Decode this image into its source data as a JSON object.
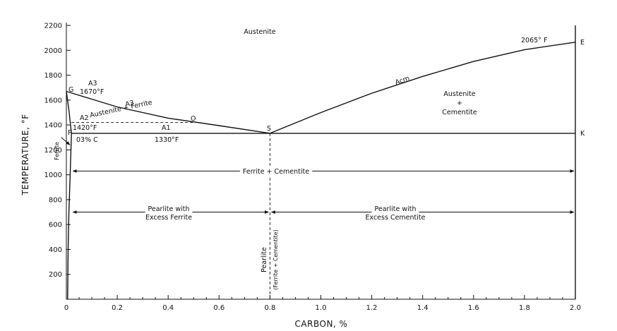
{
  "chart_data": {
    "type": "line",
    "title": "",
    "xlabel": "CARBON, %",
    "ylabel": "TEMPERATURE, °F",
    "xlim": [
      0,
      2.0
    ],
    "ylim": [
      0,
      2200
    ],
    "x_ticks": [
      {
        "value": 0,
        "label": "0"
      },
      {
        "value": 0.2,
        "label": "0.2"
      },
      {
        "value": 0.4,
        "label": "0.4"
      },
      {
        "value": 0.6,
        "label": "0.6"
      },
      {
        "value": 0.8,
        "label": "0.8"
      },
      {
        "value": 1.0,
        "label": "1.0"
      },
      {
        "value": 1.2,
        "label": "1.2"
      },
      {
        "value": 1.4,
        "label": "1.4"
      },
      {
        "value": 1.6,
        "label": "1.6"
      },
      {
        "value": 1.8,
        "label": "1.8"
      },
      {
        "value": 2.0,
        "label": "2.0"
      }
    ],
    "x_minor_step": 0.05,
    "y_ticks": [
      {
        "value": 200,
        "label": "200"
      },
      {
        "value": 400,
        "label": "400"
      },
      {
        "value": 600,
        "label": "600"
      },
      {
        "value": 800,
        "label": "800"
      },
      {
        "value": 1000,
        "label": "1000"
      },
      {
        "value": 1200,
        "label": "1200"
      },
      {
        "value": 1400,
        "label": "1400"
      },
      {
        "value": 1600,
        "label": "1600"
      },
      {
        "value": 1800,
        "label": "1800"
      },
      {
        "value": 2000,
        "label": "2000"
      },
      {
        "value": 2200,
        "label": "2200"
      }
    ],
    "series": [
      {
        "key": "a3-line",
        "name": "A3",
        "style": "solid",
        "points": [
          [
            0,
            1670
          ],
          [
            0.2,
            1545
          ],
          [
            0.4,
            1455
          ],
          [
            0.6,
            1395
          ],
          [
            0.8,
            1333
          ]
        ]
      },
      {
        "key": "acm-line",
        "name": "Acm",
        "style": "solid",
        "points": [
          [
            0.8,
            1333
          ],
          [
            1.0,
            1500
          ],
          [
            1.2,
            1655
          ],
          [
            1.4,
            1790
          ],
          [
            1.6,
            1910
          ],
          [
            1.8,
            2005
          ],
          [
            2.0,
            2065
          ]
        ]
      },
      {
        "key": "a1-line",
        "name": "A1",
        "style": "solid",
        "points": [
          [
            0.02,
            1333
          ],
          [
            2.0,
            1333
          ]
        ]
      },
      {
        "key": "a2-line",
        "name": "A2",
        "style": "dashed",
        "points": [
          [
            0.02,
            1420
          ],
          [
            0.5,
            1420
          ]
        ]
      },
      {
        "key": "solvus-line",
        "name": "",
        "style": "solid",
        "points": [
          [
            0,
            1670
          ],
          [
            0.01,
            1520
          ],
          [
            0.02,
            1333
          ]
        ]
      },
      {
        "key": "ferrite-boundary",
        "name": "",
        "style": "solid",
        "points": [
          [
            0.02,
            1333
          ],
          [
            0.015,
            1000
          ],
          [
            0.01,
            700
          ],
          [
            0.007,
            400
          ],
          [
            0.005,
            0
          ]
        ]
      },
      {
        "key": "right-boundary",
        "name": "",
        "style": "solid",
        "points": [
          [
            2.0,
            0
          ],
          [
            2.0,
            2200
          ]
        ]
      },
      {
        "key": "eutectoid-line",
        "name": "",
        "style": "dashed",
        "points": [
          [
            0.8,
            1333
          ],
          [
            0.8,
            0
          ]
        ]
      }
    ],
    "point_labels": [
      {
        "key": "point-g",
        "text": "G",
        "x": 0,
        "y": 1670
      },
      {
        "key": "point-p",
        "text": "P",
        "x": 0.02,
        "y": 1333
      },
      {
        "key": "point-s",
        "text": "S",
        "x": 0.8,
        "y": 1333
      },
      {
        "key": "point-k",
        "text": "K",
        "x": 2.0,
        "y": 1333
      },
      {
        "key": "point-e",
        "text": "E",
        "x": 2.0,
        "y": 2065
      },
      {
        "key": "point-o",
        "text": "O",
        "x": 0.5,
        "y": 1420
      }
    ],
    "annotations": [
      {
        "key": "austenite",
        "text": "Austenite"
      },
      {
        "key": "austenite-cementite-1",
        "text": "Austenite"
      },
      {
        "key": "austenite-cementite-2",
        "text": "+"
      },
      {
        "key": "austenite-cementite-3",
        "text": "Cementite"
      },
      {
        "key": "austenite-ferrite",
        "text": "Austenite + Ferrite"
      },
      {
        "key": "a3-upper",
        "text": "A3"
      },
      {
        "key": "temp-1670",
        "text": "1670°F"
      },
      {
        "key": "a3-mid",
        "text": "A3"
      },
      {
        "key": "a2-text",
        "text": "A2"
      },
      {
        "key": "temp-1420",
        "text": "1420°F"
      },
      {
        "key": "a1-text",
        "text": "A1"
      },
      {
        "key": "temp-1330",
        "text": "1330°F"
      },
      {
        "key": "carbon-003",
        "text": "03% C"
      },
      {
        "key": "ferrite-text",
        "text": "Ferrite"
      },
      {
        "key": "acm-text",
        "text": "Acm"
      },
      {
        "key": "temp-2065",
        "text": "2065° F"
      },
      {
        "key": "ferrite-cementite",
        "text": "Ferrite + Cementite"
      },
      {
        "key": "pearlite-left-1",
        "text": "Pearlite with"
      },
      {
        "key": "pearlite-left-2",
        "text": "Excess Ferrite"
      },
      {
        "key": "pearlite-right-1",
        "text": "Pearlite with"
      },
      {
        "key": "pearlite-right-2",
        "text": "Excess Cementite"
      },
      {
        "key": "pearlite-vertical-1",
        "text": "Pearlite"
      },
      {
        "key": "pearlite-vertical-2",
        "text": "(Ferrite + Cementite)"
      }
    ],
    "range_arrows": [
      {
        "key": "ferrite-cementite-arrow",
        "y": 1030,
        "x_from": 0.02,
        "x_to": 2.0
      },
      {
        "key": "pearlite-left-arrow",
        "y": 700,
        "x_from": 0.02,
        "x_to": 0.8
      },
      {
        "key": "pearlite-right-arrow",
        "y": 700,
        "x_from": 0.8,
        "x_to": 2.0
      }
    ],
    "grid": false
  }
}
